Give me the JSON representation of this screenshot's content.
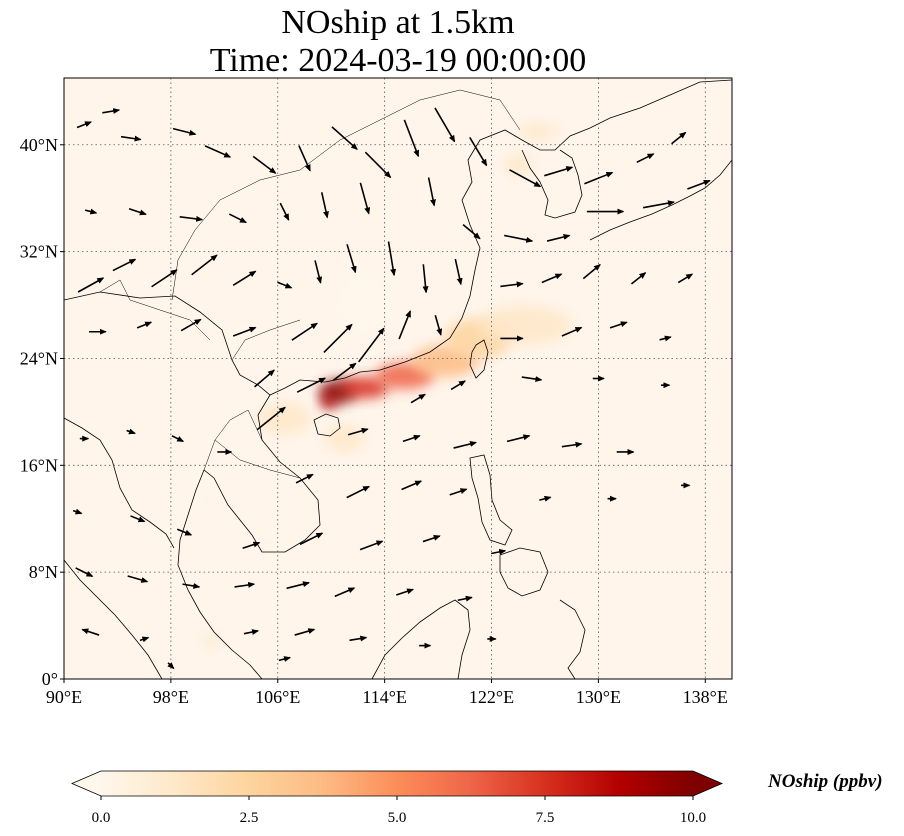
{
  "title": {
    "line1": "NOship at 1.5km",
    "line2": "Time: 2024-03-19 00:00:00"
  },
  "map": {
    "lon_range": [
      90,
      140
    ],
    "lat_range": [
      0,
      45
    ],
    "lon_ticks": [
      {
        "value": 90,
        "label": "90°E"
      },
      {
        "value": 98,
        "label": "98°E"
      },
      {
        "value": 106,
        "label": "106°E"
      },
      {
        "value": 114,
        "label": "114°E"
      },
      {
        "value": 122,
        "label": "122°E"
      },
      {
        "value": 130,
        "label": "130°E"
      },
      {
        "value": 138,
        "label": "138°E"
      }
    ],
    "lat_ticks": [
      {
        "value": 0,
        "label": "0°"
      },
      {
        "value": 8,
        "label": "8°N"
      },
      {
        "value": 16,
        "label": "16°N"
      },
      {
        "value": 24,
        "label": "24°N"
      },
      {
        "value": 32,
        "label": "32°N"
      },
      {
        "value": 40,
        "label": "40°N"
      }
    ],
    "gridlines": true,
    "background_color": "#fff5eb",
    "colormap": "OrRd",
    "field_hotspots": [
      {
        "lon": 110.5,
        "lat": 21.5,
        "value": 10.0,
        "sx": 1.4,
        "sy": 0.9
      },
      {
        "lon": 109.8,
        "lat": 20.8,
        "value": 9.0,
        "sx": 0.6,
        "sy": 0.6
      },
      {
        "lon": 112.5,
        "lat": 21.8,
        "value": 7.0,
        "sx": 1.8,
        "sy": 0.8
      },
      {
        "lon": 115.5,
        "lat": 22.7,
        "value": 6.0,
        "sx": 2.2,
        "sy": 1.0
      },
      {
        "lon": 118.5,
        "lat": 23.8,
        "value": 4.0,
        "sx": 2.5,
        "sy": 1.2
      },
      {
        "lon": 121.0,
        "lat": 25.5,
        "value": 2.2,
        "sx": 2.5,
        "sy": 1.5
      },
      {
        "lon": 124.5,
        "lat": 26.5,
        "value": 1.0,
        "sx": 3.5,
        "sy": 1.5
      },
      {
        "lon": 106.5,
        "lat": 19.5,
        "value": 1.2,
        "sx": 2.0,
        "sy": 1.2
      },
      {
        "lon": 125.5,
        "lat": 41.0,
        "value": 1.2,
        "sx": 1.5,
        "sy": 0.6
      },
      {
        "lon": 124.0,
        "lat": 38.5,
        "value": 0.8,
        "sx": 1.0,
        "sy": 0.8
      },
      {
        "lon": 101.0,
        "lat": 2.8,
        "value": 1.5,
        "sx": 0.5,
        "sy": 0.5
      },
      {
        "lon": 111.0,
        "lat": 18.0,
        "value": 1.0,
        "sx": 1.5,
        "sy": 1.0
      },
      {
        "lon": 112.5,
        "lat": 28.0,
        "value": 0.6,
        "sx": 2.0,
        "sy": 2.0
      }
    ],
    "wind_vectors": [
      {
        "lon": 91.5,
        "lat": 41.5,
        "u": 0.5,
        "v": 0.2
      },
      {
        "lon": 93.5,
        "lat": 42.5,
        "u": 0.6,
        "v": 0.1
      },
      {
        "lon": 95.0,
        "lat": 40.5,
        "u": 0.7,
        "v": -0.1
      },
      {
        "lon": 99.0,
        "lat": 41.0,
        "u": 0.8,
        "v": -0.2
      },
      {
        "lon": 101.5,
        "lat": 39.5,
        "u": 0.9,
        "v": -0.4
      },
      {
        "lon": 105.0,
        "lat": 38.5,
        "u": 0.8,
        "v": -0.6
      },
      {
        "lon": 108.0,
        "lat": 39.0,
        "u": 0.4,
        "v": -0.9
      },
      {
        "lon": 111.0,
        "lat": 40.5,
        "u": 0.9,
        "v": -0.8
      },
      {
        "lon": 113.5,
        "lat": 38.5,
        "u": 0.9,
        "v": -0.9
      },
      {
        "lon": 116.0,
        "lat": 40.5,
        "u": 0.5,
        "v": -1.3
      },
      {
        "lon": 118.5,
        "lat": 41.5,
        "u": 0.7,
        "v": -1.2
      },
      {
        "lon": 121.0,
        "lat": 39.5,
        "u": 0.6,
        "v": -1.0
      },
      {
        "lon": 124.5,
        "lat": 37.5,
        "u": 1.1,
        "v": -0.6
      },
      {
        "lon": 127.0,
        "lat": 38.0,
        "u": 1.0,
        "v": 0.3
      },
      {
        "lon": 130.0,
        "lat": 37.5,
        "u": 1.0,
        "v": 0.4
      },
      {
        "lon": 133.5,
        "lat": 39.0,
        "u": 0.6,
        "v": 0.3
      },
      {
        "lon": 136.0,
        "lat": 40.5,
        "u": 0.5,
        "v": 0.4
      },
      {
        "lon": 130.5,
        "lat": 35.0,
        "u": 1.3,
        "v": 0.0
      },
      {
        "lon": 134.5,
        "lat": 35.5,
        "u": 1.1,
        "v": 0.2
      },
      {
        "lon": 137.5,
        "lat": 37.0,
        "u": 0.8,
        "v": 0.3
      },
      {
        "lon": 92.0,
        "lat": 35.0,
        "u": 0.4,
        "v": -0.1
      },
      {
        "lon": 95.5,
        "lat": 35.0,
        "u": 0.6,
        "v": -0.2
      },
      {
        "lon": 99.5,
        "lat": 34.5,
        "u": 0.8,
        "v": -0.1
      },
      {
        "lon": 103.0,
        "lat": 34.5,
        "u": 0.6,
        "v": -0.3
      },
      {
        "lon": 106.5,
        "lat": 35.0,
        "u": 0.3,
        "v": -0.6
      },
      {
        "lon": 109.5,
        "lat": 35.5,
        "u": 0.2,
        "v": -0.9
      },
      {
        "lon": 112.5,
        "lat": 36.0,
        "u": 0.3,
        "v": -1.1
      },
      {
        "lon": 117.5,
        "lat": 36.5,
        "u": 0.2,
        "v": -1.0
      },
      {
        "lon": 120.5,
        "lat": 33.5,
        "u": 0.6,
        "v": -0.5
      },
      {
        "lon": 124.0,
        "lat": 33.0,
        "u": 1.0,
        "v": -0.2
      },
      {
        "lon": 127.0,
        "lat": 33.0,
        "u": 0.8,
        "v": 0.2
      },
      {
        "lon": 92.0,
        "lat": 29.5,
        "u": 0.9,
        "v": 0.5
      },
      {
        "lon": 94.5,
        "lat": 31.0,
        "u": 0.8,
        "v": 0.4
      },
      {
        "lon": 97.5,
        "lat": 30.0,
        "u": 0.9,
        "v": 0.6
      },
      {
        "lon": 100.5,
        "lat": 31.0,
        "u": 0.9,
        "v": 0.7
      },
      {
        "lon": 103.5,
        "lat": 30.0,
        "u": 0.8,
        "v": 0.5
      },
      {
        "lon": 106.5,
        "lat": 29.5,
        "u": 0.5,
        "v": -0.2
      },
      {
        "lon": 109.0,
        "lat": 30.5,
        "u": 0.2,
        "v": -0.8
      },
      {
        "lon": 111.5,
        "lat": 31.5,
        "u": 0.3,
        "v": -1.0
      },
      {
        "lon": 114.5,
        "lat": 31.5,
        "u": 0.2,
        "v": -1.2
      },
      {
        "lon": 117.0,
        "lat": 30.0,
        "u": 0.1,
        "v": -1.0
      },
      {
        "lon": 119.5,
        "lat": 30.5,
        "u": 0.2,
        "v": -0.9
      },
      {
        "lon": 123.5,
        "lat": 29.5,
        "u": 0.8,
        "v": 0.1
      },
      {
        "lon": 126.5,
        "lat": 30.0,
        "u": 0.7,
        "v": 0.3
      },
      {
        "lon": 129.5,
        "lat": 30.5,
        "u": 0.6,
        "v": 0.5
      },
      {
        "lon": 133.0,
        "lat": 30.0,
        "u": 0.5,
        "v": 0.4
      },
      {
        "lon": 136.5,
        "lat": 30.0,
        "u": 0.5,
        "v": 0.3
      },
      {
        "lon": 92.5,
        "lat": 26.0,
        "u": 0.6,
        "v": 0.0
      },
      {
        "lon": 96.0,
        "lat": 26.5,
        "u": 0.5,
        "v": 0.2
      },
      {
        "lon": 99.5,
        "lat": 26.5,
        "u": 0.7,
        "v": 0.4
      },
      {
        "lon": 103.5,
        "lat": 26.0,
        "u": 0.8,
        "v": 0.3
      },
      {
        "lon": 108.0,
        "lat": 26.0,
        "u": 0.9,
        "v": 0.6
      },
      {
        "lon": 110.5,
        "lat": 25.5,
        "u": 1.0,
        "v": 1.0
      },
      {
        "lon": 113.0,
        "lat": 25.0,
        "u": 0.9,
        "v": 1.2
      },
      {
        "lon": 115.5,
        "lat": 26.5,
        "u": 0.4,
        "v": 1.0
      },
      {
        "lon": 118.0,
        "lat": 26.5,
        "u": 0.2,
        "v": -0.7
      },
      {
        "lon": 123.5,
        "lat": 25.5,
        "u": 0.8,
        "v": 0.0
      },
      {
        "lon": 128.0,
        "lat": 26.0,
        "u": 0.7,
        "v": 0.3
      },
      {
        "lon": 131.5,
        "lat": 26.5,
        "u": 0.6,
        "v": 0.2
      },
      {
        "lon": 135.0,
        "lat": 25.5,
        "u": 0.4,
        "v": 0.1
      },
      {
        "lon": 105.0,
        "lat": 22.5,
        "u": 0.7,
        "v": 0.6
      },
      {
        "lon": 108.5,
        "lat": 22.0,
        "u": 1.0,
        "v": 0.5
      },
      {
        "lon": 111.0,
        "lat": 23.0,
        "u": 0.8,
        "v": 0.6
      },
      {
        "lon": 116.5,
        "lat": 21.0,
        "u": 0.5,
        "v": 0.3
      },
      {
        "lon": 119.5,
        "lat": 22.0,
        "u": 0.5,
        "v": 0.3
      },
      {
        "lon": 125.0,
        "lat": 22.5,
        "u": 0.7,
        "v": -0.1
      },
      {
        "lon": 130.0,
        "lat": 22.5,
        "u": 0.4,
        "v": 0.0
      },
      {
        "lon": 135.0,
        "lat": 22.0,
        "u": 0.3,
        "v": 0.0
      },
      {
        "lon": 105.5,
        "lat": 19.5,
        "u": 1.0,
        "v": 0.8
      },
      {
        "lon": 112.0,
        "lat": 18.5,
        "u": 0.7,
        "v": 0.2
      },
      {
        "lon": 116.0,
        "lat": 18.0,
        "u": 0.6,
        "v": 0.2
      },
      {
        "lon": 120.0,
        "lat": 17.5,
        "u": 0.8,
        "v": 0.2
      },
      {
        "lon": 124.0,
        "lat": 18.0,
        "u": 0.8,
        "v": 0.2
      },
      {
        "lon": 128.0,
        "lat": 17.5,
        "u": 0.7,
        "v": 0.1
      },
      {
        "lon": 132.0,
        "lat": 17.0,
        "u": 0.6,
        "v": 0.0
      },
      {
        "lon": 91.5,
        "lat": 18.0,
        "u": 0.3,
        "v": 0.0
      },
      {
        "lon": 95.0,
        "lat": 18.5,
        "u": 0.3,
        "v": -0.1
      },
      {
        "lon": 98.5,
        "lat": 18.0,
        "u": 0.4,
        "v": -0.2
      },
      {
        "lon": 102.0,
        "lat": 17.0,
        "u": 0.5,
        "v": 0.0
      },
      {
        "lon": 108.0,
        "lat": 15.0,
        "u": 0.6,
        "v": 0.3
      },
      {
        "lon": 112.0,
        "lat": 14.0,
        "u": 0.8,
        "v": 0.4
      },
      {
        "lon": 116.0,
        "lat": 14.5,
        "u": 0.7,
        "v": 0.3
      },
      {
        "lon": 119.5,
        "lat": 14.0,
        "u": 0.6,
        "v": 0.2
      },
      {
        "lon": 126.0,
        "lat": 13.5,
        "u": 0.4,
        "v": 0.1
      },
      {
        "lon": 131.0,
        "lat": 13.5,
        "u": 0.3,
        "v": 0.0
      },
      {
        "lon": 136.5,
        "lat": 14.5,
        "u": 0.3,
        "v": 0.0
      },
      {
        "lon": 91.0,
        "lat": 12.5,
        "u": 0.3,
        "v": -0.1
      },
      {
        "lon": 95.5,
        "lat": 12.0,
        "u": 0.5,
        "v": -0.2
      },
      {
        "lon": 99.0,
        "lat": 11.0,
        "u": 0.5,
        "v": -0.2
      },
      {
        "lon": 104.0,
        "lat": 10.0,
        "u": 0.6,
        "v": 0.2
      },
      {
        "lon": 108.5,
        "lat": 10.5,
        "u": 0.8,
        "v": 0.4
      },
      {
        "lon": 113.0,
        "lat": 10.0,
        "u": 0.8,
        "v": 0.3
      },
      {
        "lon": 117.5,
        "lat": 10.5,
        "u": 0.6,
        "v": 0.2
      },
      {
        "lon": 122.5,
        "lat": 9.5,
        "u": 0.5,
        "v": 0.1
      },
      {
        "lon": 91.5,
        "lat": 8.0,
        "u": 0.6,
        "v": -0.3
      },
      {
        "lon": 95.5,
        "lat": 7.5,
        "u": 0.7,
        "v": -0.2
      },
      {
        "lon": 99.5,
        "lat": 7.0,
        "u": 0.6,
        "v": -0.1
      },
      {
        "lon": 103.5,
        "lat": 7.0,
        "u": 0.7,
        "v": 0.1
      },
      {
        "lon": 107.5,
        "lat": 7.0,
        "u": 0.8,
        "v": 0.2
      },
      {
        "lon": 111.0,
        "lat": 6.5,
        "u": 0.7,
        "v": 0.3
      },
      {
        "lon": 115.5,
        "lat": 6.5,
        "u": 0.6,
        "v": 0.2
      },
      {
        "lon": 120.0,
        "lat": 6.0,
        "u": 0.5,
        "v": 0.1
      },
      {
        "lon": 92.0,
        "lat": 3.5,
        "u": -0.6,
        "v": 0.2
      },
      {
        "lon": 96.0,
        "lat": 3.0,
        "u": 0.3,
        "v": 0.1
      },
      {
        "lon": 104.0,
        "lat": 3.5,
        "u": 0.5,
        "v": 0.1
      },
      {
        "lon": 108.0,
        "lat": 3.5,
        "u": 0.7,
        "v": 0.2
      },
      {
        "lon": 112.0,
        "lat": 3.0,
        "u": 0.6,
        "v": 0.1
      },
      {
        "lon": 117.0,
        "lat": 2.5,
        "u": 0.4,
        "v": 0.0
      },
      {
        "lon": 122.0,
        "lat": 3.0,
        "u": 0.3,
        "v": 0.0
      },
      {
        "lon": 98.0,
        "lat": 1.0,
        "u": 0.2,
        "v": -0.2
      },
      {
        "lon": 106.5,
        "lat": 1.5,
        "u": 0.4,
        "v": 0.1
      }
    ]
  },
  "colorbar": {
    "label": "NOship (ppbv)",
    "vmin": 0,
    "vmax": 10,
    "extend": "both",
    "ticks": [
      {
        "value": 0,
        "label": "0.0"
      },
      {
        "value": 2.5,
        "label": "2.5"
      },
      {
        "value": 5,
        "label": "5.0"
      },
      {
        "value": 7.5,
        "label": "7.5"
      },
      {
        "value": 10,
        "label": "10.0"
      }
    ],
    "colors": [
      "#fff7ec",
      "#fee8c8",
      "#fdd49e",
      "#fdbb84",
      "#fc8d59",
      "#ef6548",
      "#d7301f",
      "#b30000",
      "#7f0000"
    ]
  }
}
